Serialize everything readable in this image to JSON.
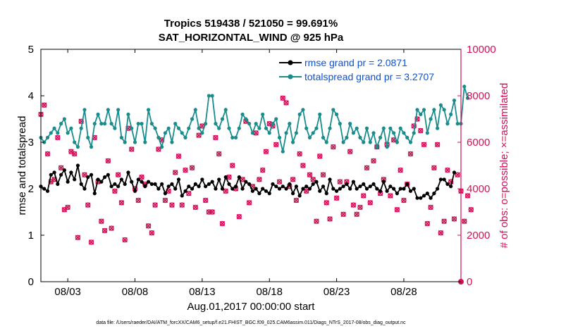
{
  "chart_data": {
    "type": "line",
    "title_line1": "Tropics 519438 / 521050 = 99.691%",
    "title_line2": "SAT_HORIZONTAL_WIND @ 925 hPa",
    "xlabel": "Aug.01,2017 00:00:00 start",
    "ylabel_left": "rmse and totalspread",
    "ylabel_right": "# of obs: o=possible; ×=assimilated",
    "footer": "data file: /Users/raeder/DAI/ATM_forcXX/CAM6_setup/f.e21.FHIST_BGC.f09_025.CAM6assim.011/Diags_NTrS_2017-08/obs_diag_output.nc",
    "x_range": [
      1,
      32.25
    ],
    "y_left_range": [
      0,
      5
    ],
    "y_right_range": [
      0,
      10000
    ],
    "x_ticks": [
      {
        "x": 3,
        "label": "08/03"
      },
      {
        "x": 8,
        "label": "08/08"
      },
      {
        "x": 13,
        "label": "08/13"
      },
      {
        "x": 18,
        "label": "08/18"
      },
      {
        "x": 23,
        "label": "08/23"
      },
      {
        "x": 28,
        "label": "08/28"
      }
    ],
    "y_left_ticks": [
      "0",
      "1",
      "2",
      "3",
      "4",
      "5"
    ],
    "y_right_ticks": [
      "0",
      "2000",
      "4000",
      "6000",
      "8000",
      "10000"
    ],
    "x_start": 1,
    "x_step": 0.25,
    "series": [
      {
        "name": "rmse grand pr = 2.0871",
        "color": "#000000",
        "axis": "left",
        "values": [
          2.05,
          2.0,
          1.95,
          2.3,
          2.35,
          2.1,
          2.3,
          2.4,
          2.15,
          2.35,
          2.2,
          2.5,
          2.1,
          2.0,
          2.25,
          2.3,
          1.9,
          2.2,
          2.15,
          2.25,
          2.3,
          2.05,
          2.1,
          2.05,
          2.2,
          2.1,
          2.35,
          2.15,
          1.95,
          2.2,
          2.15,
          2.05,
          2.15,
          2.1,
          2.1,
          2.0,
          2.1,
          1.9,
          2.05,
          2.1,
          2.0,
          2.2,
          1.85,
          1.95,
          2.05,
          2.0,
          2.1,
          2.05,
          2.2,
          2.05,
          2.1,
          2.15,
          2.0,
          2.2,
          2.0,
          2.25,
          2.1,
          2.0,
          2.05,
          2.25,
          2.0,
          2.15,
          2.1,
          1.95,
          2.0,
          1.9,
          2.0,
          1.95,
          1.9,
          2.1,
          2.05,
          2.0,
          2.05,
          2.0,
          2.1,
          1.9,
          2.05,
          1.85,
          2.0,
          2.05,
          2.0,
          2.1,
          2.15,
          1.95,
          2.05,
          1.9,
          2.2,
          2.0,
          1.95,
          2.0,
          2.05,
          2.1,
          2.0,
          2.15,
          2.0,
          2.05,
          2.1,
          2.0,
          2.05,
          2.1,
          2.0,
          1.95,
          2.15,
          1.95,
          2.05,
          2.0,
          1.9,
          2.0,
          2.0,
          2.1,
          1.95,
          2.0,
          1.8,
          1.8,
          1.85,
          1.9,
          1.8,
          1.9,
          2.0,
          2.2,
          2.2,
          2.1,
          2.05,
          2.35
        ]
      },
      {
        "name": "totalspread grand pr = 3.2707",
        "color": "#1a8c8c",
        "axis": "left",
        "values": [
          3.1,
          3.0,
          3.1,
          3.2,
          3.3,
          3.2,
          3.4,
          3.5,
          3.2,
          3.3,
          3.0,
          2.9,
          3.3,
          3.7,
          3.1,
          2.9,
          3.4,
          3.6,
          3.4,
          3.4,
          3.7,
          3.4,
          3.3,
          3.7,
          3.1,
          3.0,
          3.6,
          3.3,
          3.0,
          3.4,
          3.4,
          3.0,
          3.7,
          3.4,
          3.3,
          3.1,
          2.9,
          3.2,
          3.3,
          3.0,
          3.4,
          3.3,
          3.2,
          3.1,
          3.3,
          3.5,
          3.7,
          3.3,
          3.2,
          3.4,
          4.0,
          4.0,
          3.4,
          3.3,
          3.5,
          3.7,
          3.3,
          3.1,
          3.1,
          3.3,
          3.6,
          3.5,
          3.4,
          3.2,
          3.4,
          3.3,
          3.6,
          3.3,
          3.2,
          3.4,
          3.5,
          3.1,
          2.8,
          3.2,
          3.4,
          3.0,
          3.2,
          3.6,
          3.7,
          3.3,
          3.1,
          3.2,
          3.3,
          3.6,
          3.1,
          3.0,
          3.3,
          3.7,
          3.6,
          3.4,
          3.0,
          3.1,
          3.4,
          3.2,
          3.3,
          3.1,
          3.0,
          3.3,
          3.0,
          3.2,
          2.9,
          3.1,
          3.3,
          2.9,
          3.3,
          3.2,
          3.0,
          3.3,
          3.2,
          3.1,
          3.0,
          3.2,
          3.7,
          3.6,
          3.7,
          3.2,
          3.5,
          3.7,
          3.3,
          3.8,
          3.7,
          3.4,
          3.6,
          3.9,
          3.4,
          3.4,
          4.2,
          3.95
        ]
      },
      {
        "name": "obs possible",
        "color": "#d4105a",
        "axis": "right",
        "values": [
          7200,
          7600,
          5500,
          4300,
          4400,
          6200,
          4900,
          3100,
          3200,
          5600,
          5500,
          1900,
          6900,
          4600,
          3300,
          1700,
          6200,
          4300,
          2600,
          2200,
          5200,
          2300,
          3900,
          4600,
          3400,
          1800,
          6600,
          5700,
          4000,
          3500,
          4500,
          4200,
          2400,
          2100,
          3300,
          5700,
          6100,
          3500,
          3900,
          3300,
          4700,
          5400,
          3300,
          4800,
          3800,
          4900,
          3200,
          6300,
          6700,
          3500,
          3000,
          3000,
          6200,
          5500,
          2500,
          3900,
          4500,
          5000,
          4000,
          2800,
          4400,
          6900,
          3400,
          4100,
          6400,
          4400,
          4800,
          5600,
          6800,
          6700,
          5900,
          4300,
          7900,
          7700,
          4100,
          4400,
          3500,
          5500,
          5000,
          3900,
          4600,
          4400,
          2600,
          5400,
          4600,
          3400,
          2700,
          5800,
          3600,
          4300,
          2900,
          4300,
          5600,
          3300,
          2900,
          3200,
          3700,
          4900,
          3400,
          5200,
          5800,
          3800,
          4400,
          5900,
          3700,
          6100,
          3100,
          4800,
          3500,
          4200,
          5500,
          6700,
          7000,
          6500,
          5900,
          2500,
          3200,
          4900,
          5900,
          2100,
          2600,
          4800,
          4300,
          2700,
          4600,
          3900,
          2600,
          3700,
          3100
        ]
      },
      {
        "name": "obs assimilated",
        "color": "#d4105a",
        "axis": "right",
        "values": [
          7200,
          7600,
          5500,
          4300,
          4400,
          6200,
          4900,
          3100,
          3200,
          5600,
          5500,
          1900,
          6900,
          4600,
          3300,
          1700,
          6200,
          4300,
          2600,
          2200,
          5200,
          2300,
          3900,
          4600,
          3400,
          1800,
          6600,
          5700,
          4000,
          3500,
          4500,
          4200,
          2400,
          2100,
          3300,
          5700,
          6100,
          3500,
          3900,
          3300,
          4700,
          5400,
          3300,
          4800,
          3800,
          4900,
          3200,
          6300,
          6700,
          3500,
          3000,
          3000,
          6200,
          5500,
          2500,
          3900,
          4500,
          5000,
          4000,
          2800,
          4400,
          6900,
          3400,
          4100,
          6400,
          4400,
          4800,
          5600,
          6800,
          6700,
          5900,
          4300,
          7900,
          7700,
          4100,
          4400,
          3500,
          5500,
          5000,
          3900,
          4600,
          4400,
          2600,
          5400,
          4600,
          3400,
          2700,
          5800,
          3600,
          4300,
          2900,
          4300,
          5600,
          3300,
          2900,
          3200,
          3700,
          4900,
          3400,
          5200,
          5800,
          3800,
          4400,
          5900,
          3700,
          6100,
          3100,
          4800,
          3500,
          4200,
          5500,
          6700,
          7000,
          6500,
          5900,
          2500,
          3200,
          4900,
          5900,
          2100,
          2600,
          4800,
          4300,
          2700,
          4600,
          3900,
          2600,
          3700,
          3100
        ]
      }
    ],
    "final_point_x": 32.25,
    "final_point_right_value": 0
  },
  "legend": {
    "rmse_label": "rmse grand pr = 2.0871",
    "spread_label": "totalspread grand pr = 3.2707"
  },
  "colors": {
    "rmse": "#000000",
    "spread": "#1a8c8c",
    "obs": "#d4105a",
    "legend_text": "#0a52d6"
  }
}
